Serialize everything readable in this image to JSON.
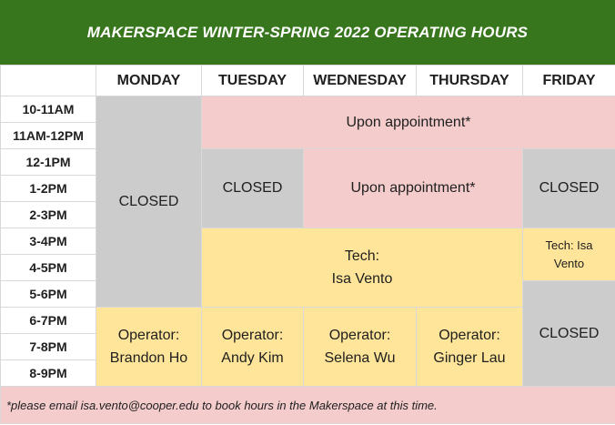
{
  "title": "MAKERSPACE WINTER-SPRING 2022 OPERATING HOURS",
  "days": [
    "MONDAY",
    "TUESDAY",
    "WEDNESDAY",
    "THURSDAY",
    "FRIDAY"
  ],
  "times": [
    "10-11AM",
    "11AM-12PM",
    "12-1PM",
    "1-2PM",
    "2-3PM",
    "3-4PM",
    "4-5PM",
    "5-6PM",
    "6-7PM",
    "7-8PM",
    "8-9PM"
  ],
  "cells": {
    "monday_closed": "CLOSED",
    "tue_fri_morning_appt": "Upon appointment*",
    "tuesday_closed": "CLOSED",
    "wed_thu_appt": "Upon appointment*",
    "friday_midday_closed": "CLOSED",
    "tech_main": {
      "role": "Tech:",
      "name": "Isa Vento"
    },
    "tech_friday": {
      "role": "Tech: Isa",
      "name": "Vento"
    },
    "friday_evening_closed": "CLOSED",
    "operators": [
      {
        "role": "Operator:",
        "name": "Brandon Ho"
      },
      {
        "role": "Operator:",
        "name": "Andy Kim"
      },
      {
        "role": "Operator:",
        "name": "Selena Wu"
      },
      {
        "role": "Operator:",
        "name": "Ginger Lau"
      }
    ]
  },
  "footnote": "*please email isa.vento@cooper.edu to book hours in the Makerspace at this time.",
  "colors": {
    "header_green": "#38761d",
    "closed_gray": "#cccccc",
    "appointment_pink": "#f4cccc",
    "staff_yellow": "#ffe599"
  }
}
